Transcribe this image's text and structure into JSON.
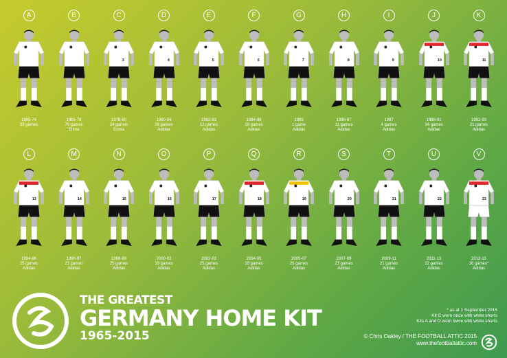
{
  "kits": [
    {
      "letter": "A",
      "years": "1965-74",
      "games": "33 games",
      "maker": "",
      "number": "",
      "shirt": "#ffffff",
      "shorts": "#111111"
    },
    {
      "letter": "B",
      "years": "1965-78",
      "games": "79 games",
      "maker": "Erima",
      "number": "",
      "shirt": "#ffffff",
      "shorts": "#111111"
    },
    {
      "letter": "C",
      "years": "1978-80",
      "games": "24 games",
      "maker": "Erima",
      "number": "3",
      "shirt": "#ffffff",
      "shorts": "#111111"
    },
    {
      "letter": "D",
      "years": "1980-84",
      "games": "28 games",
      "maker": "Adidas",
      "number": "4",
      "shirt": "#ffffff",
      "shorts": "#111111"
    },
    {
      "letter": "E",
      "years": "1982-83",
      "games": "12 games",
      "maker": "Adidas",
      "number": "5",
      "shirt": "#ffffff",
      "shorts": "#111111"
    },
    {
      "letter": "F",
      "years": "1984-86",
      "games": "19 games",
      "maker": "Adidas",
      "number": "6",
      "shirt": "#ffffff",
      "shorts": "#111111"
    },
    {
      "letter": "G",
      "years": "1985",
      "games": "1 game",
      "maker": "Adidas",
      "number": "7",
      "shirt": "#ffffff",
      "shorts": "#111111"
    },
    {
      "letter": "H",
      "years": "1986-87",
      "games": "11 games",
      "maker": "Adidas",
      "number": "8",
      "shirt": "#ffffff",
      "shorts": "#111111"
    },
    {
      "letter": "I",
      "years": "1987",
      "games": "4 games",
      "maker": "Adidas",
      "number": "9",
      "shirt": "#ffffff",
      "shorts": "#111111"
    },
    {
      "letter": "J",
      "years": "1988-91",
      "games": "34 games",
      "maker": "Adidas",
      "number": "10",
      "shirt": "#ffffff",
      "shorts": "#111111",
      "trim": "#e3262b"
    },
    {
      "letter": "K",
      "years": "1992-93",
      "games": "21 games",
      "maker": "Adidas",
      "number": "11",
      "shirt": "#ffffff",
      "shorts": "#111111",
      "trim": "#e3262b"
    },
    {
      "letter": "L",
      "years": "1994-96",
      "games": "25 games",
      "maker": "Adidas",
      "number": "13",
      "shirt": "#ffffff",
      "shorts": "#111111",
      "trim": "#e3262b"
    },
    {
      "letter": "M",
      "years": "1996-97",
      "games": "23 games",
      "maker": "Adidas",
      "number": "14",
      "shirt": "#ffffff",
      "shorts": "#111111"
    },
    {
      "letter": "N",
      "years": "1998-99",
      "games": "25 games",
      "maker": "Adidas",
      "number": "15",
      "shirt": "#ffffff",
      "shorts": "#111111"
    },
    {
      "letter": "O",
      "years": "2000-02",
      "games": "19 games",
      "maker": "Adidas",
      "number": "16",
      "shirt": "#ffffff",
      "shorts": "#111111"
    },
    {
      "letter": "P",
      "years": "2002-03",
      "games": "25 games",
      "maker": "Adidas",
      "number": "17",
      "shirt": "#ffffff",
      "shorts": "#111111"
    },
    {
      "letter": "Q",
      "years": "2004-05",
      "games": "19 games",
      "maker": "Adidas",
      "number": "18",
      "shirt": "#ffffff",
      "shorts": "#111111",
      "trim": "#e3262b"
    },
    {
      "letter": "R",
      "years": "2005-07",
      "games": "26 games",
      "maker": "Adidas",
      "number": "19",
      "shirt": "#ffffff",
      "shorts": "#111111",
      "trim": "#f2c200"
    },
    {
      "letter": "S",
      "years": "2007-09",
      "games": "23 games",
      "maker": "Adidas",
      "number": "20",
      "shirt": "#ffffff",
      "shorts": "#111111"
    },
    {
      "letter": "T",
      "years": "2009-11",
      "games": "21 games",
      "maker": "Adidas",
      "number": "21",
      "shirt": "#ffffff",
      "shorts": "#111111"
    },
    {
      "letter": "U",
      "years": "2011-13",
      "games": "22 games",
      "maker": "Adidas",
      "number": "22",
      "shirt": "#ffffff",
      "shorts": "#111111"
    },
    {
      "letter": "V",
      "years": "2013-15",
      "games": "16 games*",
      "maker": "Adidas",
      "number": "23",
      "shirt": "#ffffff",
      "shorts": "#ffffff",
      "trim": "#e3262b"
    }
  ],
  "title": {
    "line1": "THE GREATEST",
    "line2": "GERMANY HOME KIT",
    "line3": "1965-2015"
  },
  "notes": [
    "* as at 1 September 2015",
    "Kit C worn once with white shorts",
    "Kits A and D worn twice with white shorts"
  ],
  "credit": {
    "author": "© Chris Oakley / THE FOOTBALL ATTIC 2015",
    "url": "www.thefootballattic.com"
  },
  "logo_text": "FA"
}
